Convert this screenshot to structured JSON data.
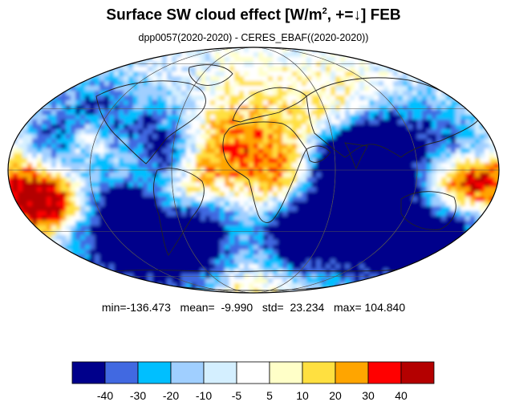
{
  "title": {
    "main": "Surface SW cloud effect [W/m",
    "sup": "2",
    "rest": ", +=↓]  FEB"
  },
  "subtitle": "dpp0057(2020-2020) - CERES_EBAF((2020-2020))",
  "stats": {
    "text": "min=-136.473   mean=  -9.990   std=  23.234   max= 104.840",
    "min": -136.473,
    "mean": -9.99,
    "std": 23.234,
    "max": 104.84
  },
  "colorbar": {
    "colors": [
      "#00008b",
      "#4169e1",
      "#00bfff",
      "#a0cfff",
      "#d4efff",
      "#ffffff",
      "#ffffc8",
      "#ffe040",
      "#ffa500",
      "#ff0000",
      "#b40000"
    ],
    "labels": [
      "-40",
      "-30",
      "-20",
      "-10",
      "-5",
      "5",
      "10",
      "20",
      "30",
      "40"
    ]
  },
  "map": {
    "projection": "mollweide",
    "variable": "Surface SW cloud effect difference",
    "unit": "W/m2"
  }
}
